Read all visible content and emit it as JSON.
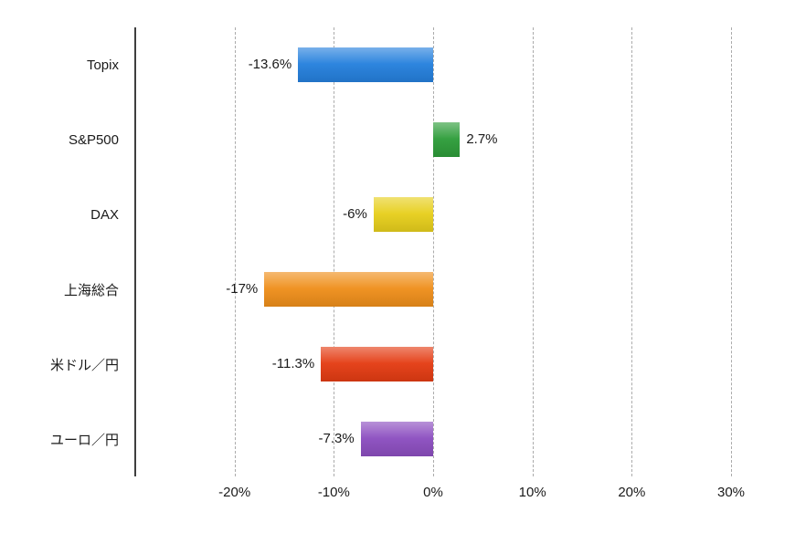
{
  "chart_data": {
    "type": "bar",
    "orientation": "horizontal",
    "title": "",
    "categories": [
      "Topix",
      "S&P500",
      "DAX",
      "上海総合",
      "米ドル／円",
      "ユーロ／円"
    ],
    "values": [
      -13.6,
      2.7,
      -6,
      -17,
      -11.3,
      -7.3
    ],
    "value_labels": [
      "-13.6%",
      "2.7%",
      "-6%",
      "-17%",
      "-11.3%",
      "-7.3%"
    ],
    "bar_colors": [
      "#2580dd",
      "#2e9d3a",
      "#e7cf1c",
      "#ef8f1b",
      "#e43c13",
      "#8c4ec0"
    ],
    "xlim": [
      -30,
      30
    ],
    "x_ticks": [
      -20,
      -10,
      0,
      10,
      20,
      30
    ],
    "x_tick_labels": [
      "-20%",
      "-10%",
      "0%",
      "10%",
      "20%",
      "30%"
    ],
    "grid": "vertical-dashed",
    "gridline_color": "#ababab",
    "axis_line_color": "#3f3f3f",
    "background": "#ffffff",
    "legend": "none"
  }
}
